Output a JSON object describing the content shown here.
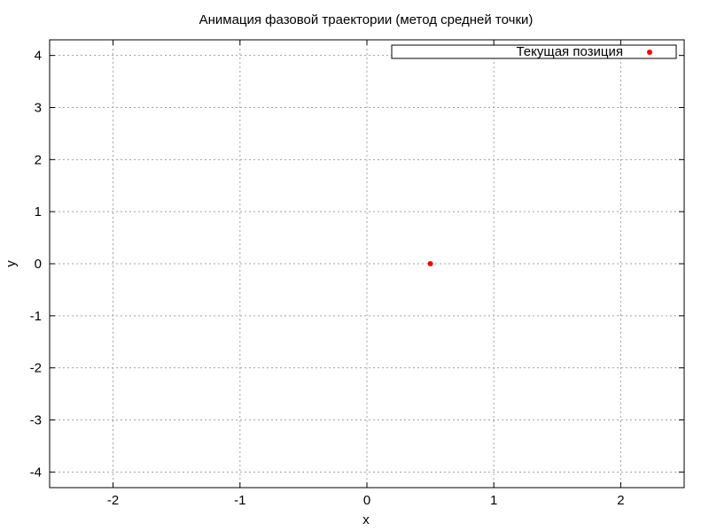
{
  "chart_data": {
    "type": "scatter",
    "title": "Анимация фазовой траектории (метод средней точки)",
    "xlabel": "x",
    "ylabel": "y",
    "xlim": [
      -2.5,
      2.5
    ],
    "ylim": [
      -4.3,
      4.3
    ],
    "xticks": [
      -2,
      -1,
      0,
      1,
      2
    ],
    "yticks": [
      -4,
      -3,
      -2,
      -1,
      0,
      1,
      2,
      3,
      4
    ],
    "grid": true,
    "grid_style": "dotted",
    "legend_position": "top-right",
    "series": [
      {
        "name": "Текущая позиция",
        "color": "#ff0000",
        "marker": "filled-circle",
        "points": [
          {
            "x": 0.5,
            "y": 0.0
          }
        ]
      }
    ]
  }
}
